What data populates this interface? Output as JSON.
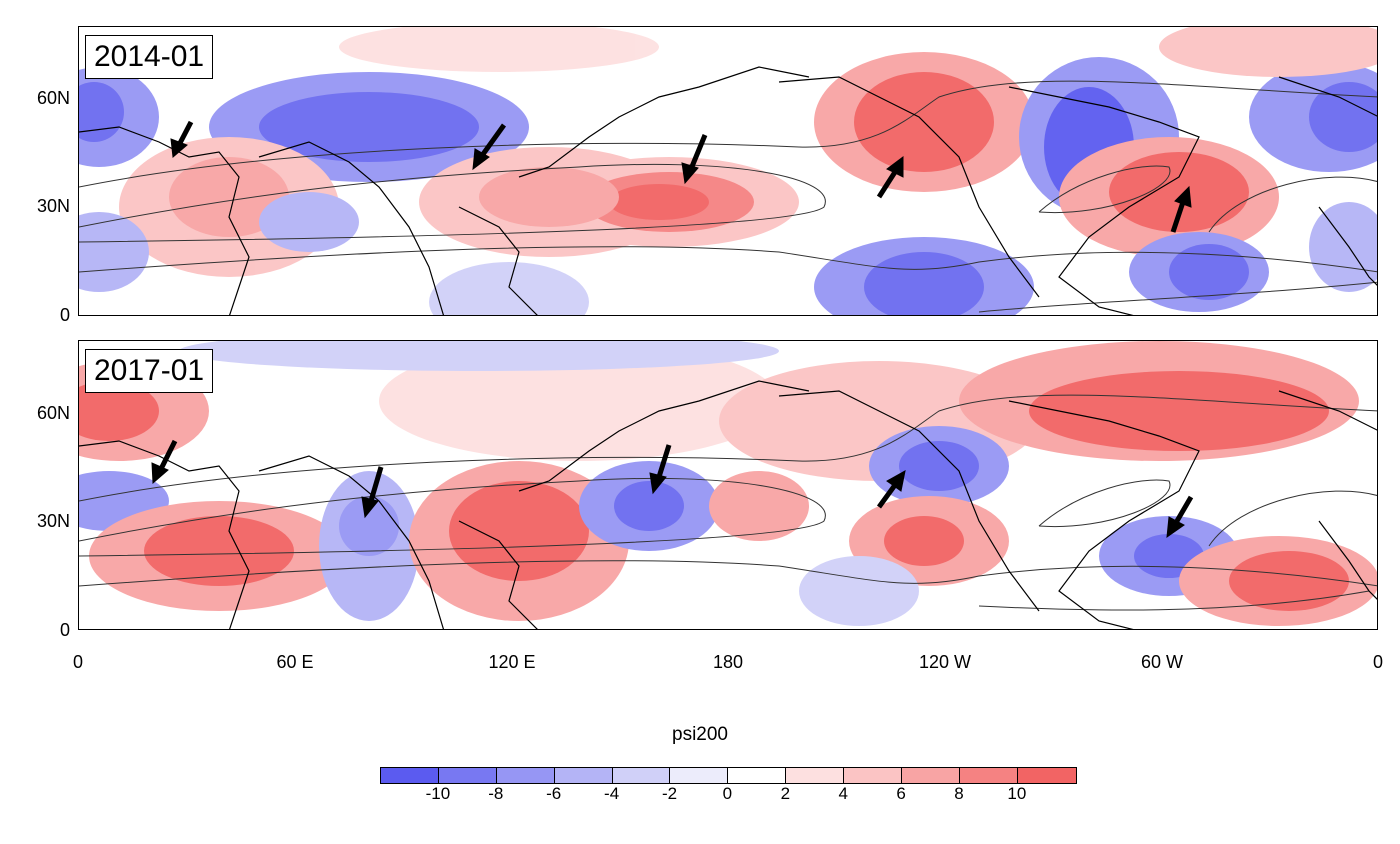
{
  "panels": [
    {
      "label": "2014-01"
    },
    {
      "label": "2017-01"
    }
  ],
  "y_axis_labels": [
    "60N",
    "30N",
    "0"
  ],
  "x_axis_labels": [
    "0",
    "60 E",
    "120 E",
    "180",
    "120 W",
    "60 W",
    "0"
  ],
  "colorbar": {
    "title": "psi200",
    "ticks": [
      "-10",
      "-8",
      "-6",
      "-4",
      "-2",
      "0",
      "2",
      "4",
      "6",
      "8",
      "10"
    ],
    "colors": [
      "#5b5bf0",
      "#7878f2",
      "#9696f4",
      "#b4b4f6",
      "#d0d0f8",
      "#ececfb",
      "#ffffff",
      "#fde0e0",
      "#fbc4c4",
      "#f8a4a4",
      "#f58282",
      "#f26464"
    ]
  },
  "icons": {
    "arrow": "arrow-icon"
  }
}
